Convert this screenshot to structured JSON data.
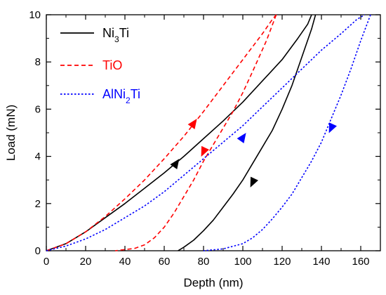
{
  "chart_data": {
    "type": "line",
    "xlabel": "Depth (nm)",
    "ylabel": "Load (mN)",
    "xlim": [
      0,
      170
    ],
    "ylim": [
      0,
      10
    ],
    "x_ticks": [
      0,
      20,
      40,
      60,
      80,
      100,
      120,
      140,
      160
    ],
    "y_ticks": [
      0,
      2,
      4,
      6,
      8,
      10
    ],
    "grid": false,
    "legend_position": "top-left",
    "series": [
      {
        "name": "Ni3Ti",
        "legend_main": "Ni",
        "legend_sub": "3",
        "legend_tail": "Ti",
        "color": "#000000",
        "dash": "solid",
        "loading": [
          [
            0,
            0
          ],
          [
            10,
            0.3
          ],
          [
            20,
            0.8
          ],
          [
            30,
            1.4
          ],
          [
            40,
            2.0
          ],
          [
            50,
            2.65
          ],
          [
            60,
            3.3
          ],
          [
            70,
            4.0
          ],
          [
            80,
            4.75
          ],
          [
            90,
            5.5
          ],
          [
            100,
            6.3
          ],
          [
            110,
            7.2
          ],
          [
            120,
            8.1
          ],
          [
            128,
            9.0
          ],
          [
            133,
            9.6
          ],
          [
            135,
            10.0
          ]
        ],
        "unloading": [
          [
            137,
            10.0
          ],
          [
            135,
            9.4
          ],
          [
            130,
            8.2
          ],
          [
            125,
            7.0
          ],
          [
            120,
            6.0
          ],
          [
            115,
            5.1
          ],
          [
            110,
            4.4
          ],
          [
            105,
            3.7
          ],
          [
            100,
            3.0
          ],
          [
            95,
            2.4
          ],
          [
            90,
            1.85
          ],
          [
            85,
            1.3
          ],
          [
            80,
            0.85
          ],
          [
            75,
            0.45
          ],
          [
            70,
            0.15
          ],
          [
            67,
            0.0
          ]
        ],
        "arrows": [
          {
            "x": 66,
            "y": 3.7,
            "direction": "up"
          },
          {
            "x": 105,
            "y": 2.9,
            "direction": "down"
          }
        ]
      },
      {
        "name": "TiO",
        "legend_main": "TiO",
        "legend_sub": "",
        "legend_tail": "",
        "color": "#ff0000",
        "dash": "dashed",
        "loading": [
          [
            0,
            0
          ],
          [
            10,
            0.3
          ],
          [
            20,
            0.8
          ],
          [
            30,
            1.45
          ],
          [
            40,
            2.2
          ],
          [
            50,
            3.0
          ],
          [
            60,
            3.9
          ],
          [
            70,
            4.85
          ],
          [
            80,
            5.9
          ],
          [
            90,
            7.0
          ],
          [
            100,
            8.1
          ],
          [
            110,
            9.2
          ],
          [
            115,
            9.8
          ],
          [
            117,
            10.0
          ]
        ],
        "unloading": [
          [
            117,
            10.0
          ],
          [
            112,
            8.9
          ],
          [
            105,
            7.6
          ],
          [
            100,
            6.7
          ],
          [
            95,
            5.9
          ],
          [
            90,
            5.2
          ],
          [
            85,
            4.5
          ],
          [
            80,
            3.8
          ],
          [
            75,
            3.0
          ],
          [
            70,
            2.3
          ],
          [
            65,
            1.6
          ],
          [
            60,
            1.0
          ],
          [
            55,
            0.55
          ],
          [
            50,
            0.25
          ],
          [
            45,
            0.1
          ],
          [
            40,
            0.05
          ],
          [
            35,
            0.0
          ]
        ],
        "arrows": [
          {
            "x": 75,
            "y": 5.4,
            "direction": "up"
          },
          {
            "x": 80,
            "y": 4.2,
            "direction": "down"
          }
        ]
      },
      {
        "name": "AlNi2Ti",
        "legend_main": "AlNi",
        "legend_sub": "2",
        "legend_tail": "Ti",
        "color": "#0000ff",
        "dash": "dotted",
        "loading": [
          [
            0,
            0
          ],
          [
            10,
            0.2
          ],
          [
            20,
            0.5
          ],
          [
            30,
            0.9
          ],
          [
            40,
            1.4
          ],
          [
            50,
            1.9
          ],
          [
            60,
            2.5
          ],
          [
            70,
            3.2
          ],
          [
            80,
            3.9
          ],
          [
            90,
            4.6
          ],
          [
            100,
            5.3
          ],
          [
            110,
            6.1
          ],
          [
            120,
            6.9
          ],
          [
            130,
            7.7
          ],
          [
            140,
            8.5
          ],
          [
            150,
            9.2
          ],
          [
            158,
            9.8
          ],
          [
            162,
            10.0
          ]
        ],
        "unloading": [
          [
            165,
            10.0
          ],
          [
            160,
            8.9
          ],
          [
            155,
            7.7
          ],
          [
            150,
            6.6
          ],
          [
            145,
            5.6
          ],
          [
            140,
            4.6
          ],
          [
            135,
            3.8
          ],
          [
            130,
            3.1
          ],
          [
            125,
            2.4
          ],
          [
            120,
            1.85
          ],
          [
            115,
            1.35
          ],
          [
            110,
            0.9
          ],
          [
            105,
            0.55
          ],
          [
            100,
            0.3
          ],
          [
            90,
            0.08
          ],
          [
            80,
            0.0
          ]
        ],
        "arrows": [
          {
            "x": 100,
            "y": 4.8,
            "direction": "up"
          },
          {
            "x": 145,
            "y": 5.2,
            "direction": "down"
          }
        ]
      }
    ]
  }
}
